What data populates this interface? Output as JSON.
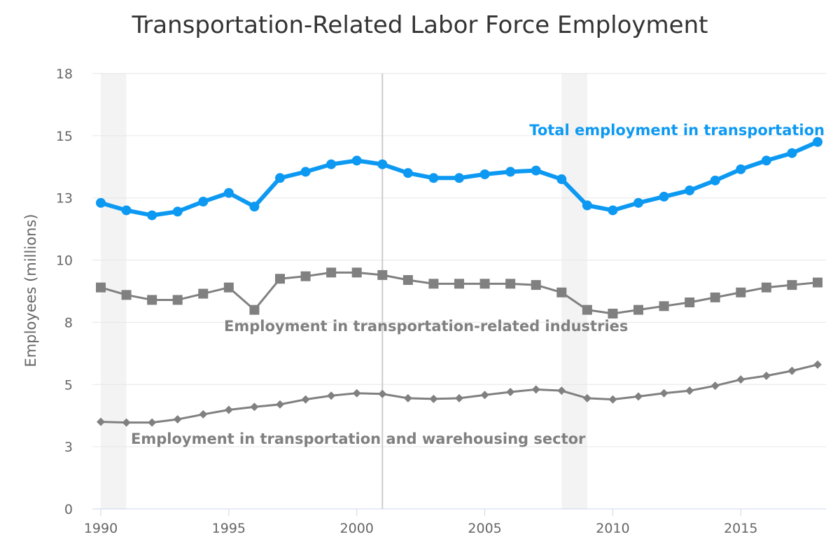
{
  "chart_data": {
    "type": "line",
    "title": "Transportation-Related Labor Force Employment",
    "ylabel": "Employees (millions)",
    "xlabel": "",
    "xlim": [
      1990,
      2018
    ],
    "ylim": [
      0,
      17.5
    ],
    "y_tick_values": [
      0,
      2.5,
      5,
      7.5,
      10,
      12.5,
      15,
      17.5
    ],
    "y_tick_labels": [
      "0",
      "3",
      "5",
      "8",
      "10",
      "13",
      "15",
      "18"
    ],
    "x_tick_values": [
      1990,
      1995,
      2000,
      2005,
      2010,
      2015
    ],
    "x_tick_labels": [
      "1990",
      "1995",
      "2000",
      "2005",
      "2010",
      "2015"
    ],
    "grid": "horizontal",
    "shaded_periods": [
      [
        1990,
        1991
      ],
      [
        2008,
        2009
      ]
    ],
    "vertical_reference_line": 2001,
    "x": [
      1990,
      1991,
      1992,
      1993,
      1994,
      1995,
      1996,
      1997,
      1998,
      1999,
      2000,
      2001,
      2002,
      2003,
      2004,
      2005,
      2006,
      2007,
      2008,
      2009,
      2010,
      2011,
      2012,
      2013,
      2014,
      2015,
      2016,
      2017,
      2018
    ],
    "series": [
      {
        "name": "Total employment in transportation",
        "color": "#0d99f2",
        "marker": "circle",
        "label_position": "upper-right",
        "values": [
          12.3,
          12.0,
          11.8,
          11.95,
          12.35,
          12.7,
          12.15,
          13.3,
          13.55,
          13.85,
          14.0,
          13.85,
          13.5,
          13.3,
          13.3,
          13.45,
          13.55,
          13.6,
          13.25,
          12.2,
          12.0,
          12.3,
          12.55,
          12.8,
          13.2,
          13.65,
          14.0,
          14.3,
          14.75
        ]
      },
      {
        "name": "Employment in transportation-related industries",
        "color": "#808080",
        "marker": "square",
        "label_position": "middle",
        "values": [
          8.9,
          8.6,
          8.4,
          8.4,
          8.65,
          8.9,
          8.0,
          9.25,
          9.35,
          9.5,
          9.5,
          9.4,
          9.2,
          9.05,
          9.05,
          9.05,
          9.05,
          9.0,
          8.7,
          8.0,
          7.85,
          8.0,
          8.15,
          8.3,
          8.5,
          8.7,
          8.9,
          9.0,
          9.1
        ]
      },
      {
        "name": "Employment in transportation and warehousing sector",
        "color": "#808080",
        "marker": "diamond",
        "label_position": "lower-left",
        "values": [
          3.5,
          3.47,
          3.47,
          3.6,
          3.8,
          3.98,
          4.1,
          4.2,
          4.4,
          4.55,
          4.65,
          4.62,
          4.45,
          4.42,
          4.45,
          4.58,
          4.7,
          4.8,
          4.75,
          4.45,
          4.4,
          4.52,
          4.65,
          4.75,
          4.95,
          5.2,
          5.35,
          5.55,
          5.8
        ]
      }
    ]
  }
}
